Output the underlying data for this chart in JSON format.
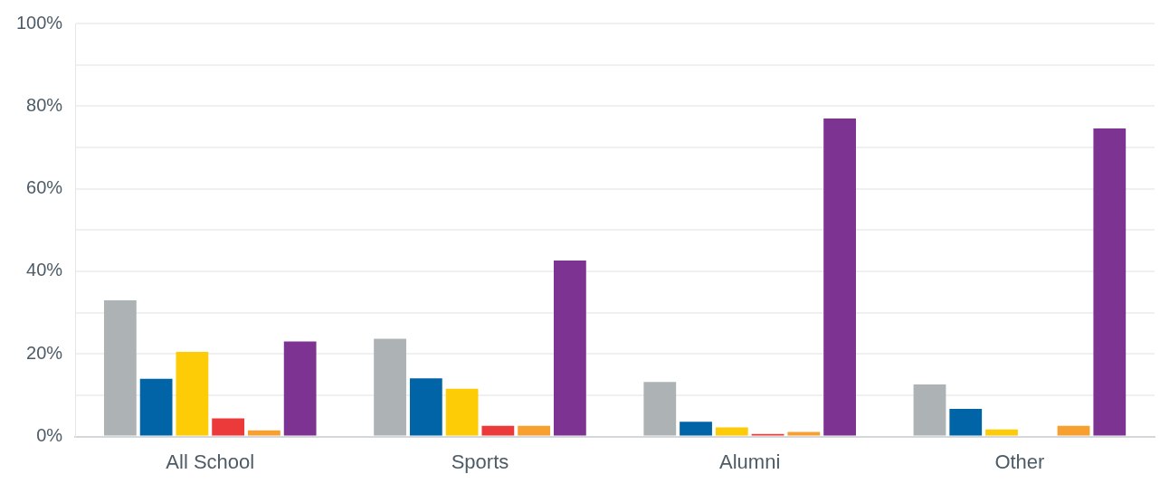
{
  "chart_data": {
    "type": "bar",
    "categories": [
      "All School",
      "Sports",
      "Alumni",
      "Other"
    ],
    "series": [
      {
        "color": "#adb2b4",
        "values": [
          33,
          23.7,
          13.2,
          12.6
        ]
      },
      {
        "color": "#0064a6",
        "values": [
          14,
          14.1,
          3.6,
          6.7
        ]
      },
      {
        "color": "#fdcc07",
        "values": [
          20.5,
          11.6,
          2.2,
          1.7
        ]
      },
      {
        "color": "#ec3a3a",
        "values": [
          4.4,
          2.6,
          0.6,
          0
        ]
      },
      {
        "color": "#f7a030",
        "values": [
          1.5,
          2.6,
          1.1,
          2.6
        ]
      },
      {
        "color": "#7d3391",
        "values": [
          23,
          42.6,
          77,
          74.6
        ]
      }
    ],
    "ylim": [
      0,
      100
    ],
    "yticks": [
      {
        "value": 0,
        "label": "0%"
      },
      {
        "value": 10,
        "label": null
      },
      {
        "value": 20,
        "label": "20%"
      },
      {
        "value": 30,
        "label": null
      },
      {
        "value": 40,
        "label": "40%"
      },
      {
        "value": 50,
        "label": null
      },
      {
        "value": 60,
        "label": "60%"
      },
      {
        "value": 70,
        "label": null
      },
      {
        "value": 80,
        "label": "80%"
      },
      {
        "value": 90,
        "label": null
      },
      {
        "value": 100,
        "label": "100%"
      }
    ],
    "grid": "y",
    "legend": false
  }
}
